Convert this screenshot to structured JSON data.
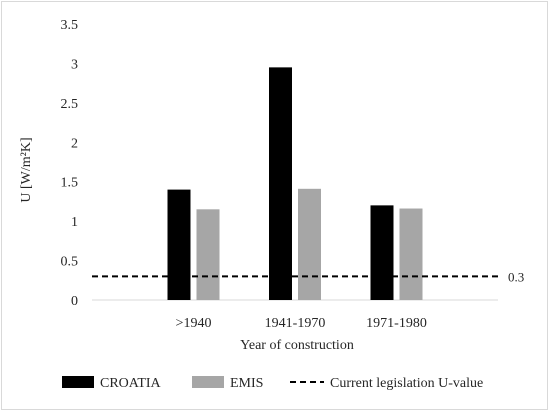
{
  "chart_data": {
    "type": "bar",
    "title": "",
    "xlabel": "Year of construction",
    "ylabel": "U [W/m²K]",
    "ylim": [
      0,
      3.5
    ],
    "yticks": [
      "0",
      "0.5",
      "1",
      "1.5",
      "2",
      "2.5",
      "3",
      "3.5"
    ],
    "categories": [
      ">1940",
      "1941-1970",
      "1971-1980"
    ],
    "series": [
      {
        "name": "CROATIA",
        "color": "#000000",
        "values": [
          1.4,
          2.95,
          1.2
        ]
      },
      {
        "name": "EMIS",
        "color": "#a6a6a6",
        "values": [
          1.15,
          1.41,
          1.16
        ]
      }
    ],
    "reference_line": {
      "name": "Current legislation U-value",
      "value": 0.3,
      "label": "0.3",
      "style": "dashed",
      "color": "#000000"
    },
    "grid": false,
    "legend_position": "bottom"
  }
}
